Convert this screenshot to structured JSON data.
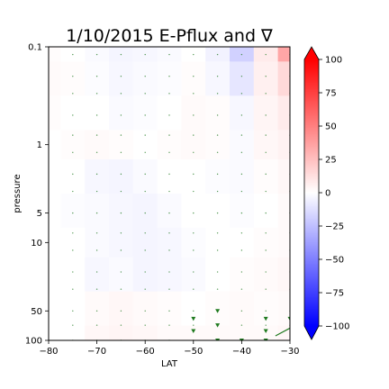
{
  "chart_data": {
    "type": "heatmap",
    "title": "1/10/2015 E-Pflux and ∇",
    "xlabel": "LAT",
    "ylabel": "pressure",
    "xlim": [
      -80,
      -30
    ],
    "ylim": [
      100,
      0.1
    ],
    "y_scale": "log",
    "x_ticks": [
      -80,
      -70,
      -60,
      -50,
      -40,
      -30
    ],
    "x_tick_labels": [
      "−80",
      "−70",
      "−60",
      "−50",
      "−40",
      "−30"
    ],
    "y_ticks": [
      0.1,
      1,
      5,
      10,
      50,
      100
    ],
    "y_tick_labels": [
      "0.1",
      "1",
      "5",
      "10",
      "50",
      "100"
    ],
    "colorbar": {
      "cmap": "bwr",
      "range": [
        -100,
        100
      ],
      "extend": "both",
      "ticks": [
        100,
        75,
        50,
        25,
        0,
        -25,
        -50,
        -75,
        -100
      ],
      "tick_labels": [
        "100",
        "75",
        "50",
        "25",
        "0",
        "−25",
        "−50",
        "−75",
        "−100"
      ]
    },
    "field_lat": [
      -80,
      -75,
      -70,
      -65,
      -60,
      -55,
      -50,
      -45,
      -40,
      -35,
      -30
    ],
    "field_pressure": [
      0.1,
      0.2,
      0.5,
      1,
      2,
      5,
      10,
      20,
      50,
      100
    ],
    "field_values": [
      [
        1,
        0,
        -2,
        -4,
        -3,
        -2,
        0,
        -5,
        -18,
        8,
        35
      ],
      [
        2,
        1,
        -1,
        -3,
        -2,
        -1,
        1,
        -3,
        -10,
        6,
        15
      ],
      [
        1,
        0,
        0,
        -2,
        -1,
        0,
        2,
        1,
        -3,
        4,
        8
      ],
      [
        0,
        1,
        2,
        1,
        0,
        1,
        2,
        1,
        -2,
        3,
        5
      ],
      [
        0,
        0,
        -3,
        -4,
        -2,
        0,
        0,
        -1,
        -2,
        1,
        3
      ],
      [
        0,
        -1,
        -2,
        -3,
        -4,
        -2,
        0,
        0,
        -1,
        0,
        2
      ],
      [
        0,
        0,
        -2,
        -3,
        -4,
        -3,
        -1,
        0,
        0,
        1,
        2
      ],
      [
        0,
        0,
        -3,
        -2,
        -4,
        -3,
        -2,
        0,
        1,
        2,
        3
      ],
      [
        0,
        0,
        2,
        3,
        2,
        1,
        0,
        1,
        2,
        1,
        2
      ],
      [
        0,
        0,
        3,
        4,
        3,
        2,
        2,
        2,
        2,
        2,
        3
      ]
    ],
    "arrow_lat": [
      -75,
      -70,
      -65,
      -60,
      -55,
      -50,
      -45,
      -40,
      -35,
      -30
    ],
    "arrow_pressure": [
      0.12,
      0.2,
      0.3,
      0.5,
      0.8,
      1.2,
      2,
      3,
      5,
      8,
      12,
      20,
      30,
      50,
      70,
      100
    ],
    "arrow_color": "#1f7a1f"
  }
}
